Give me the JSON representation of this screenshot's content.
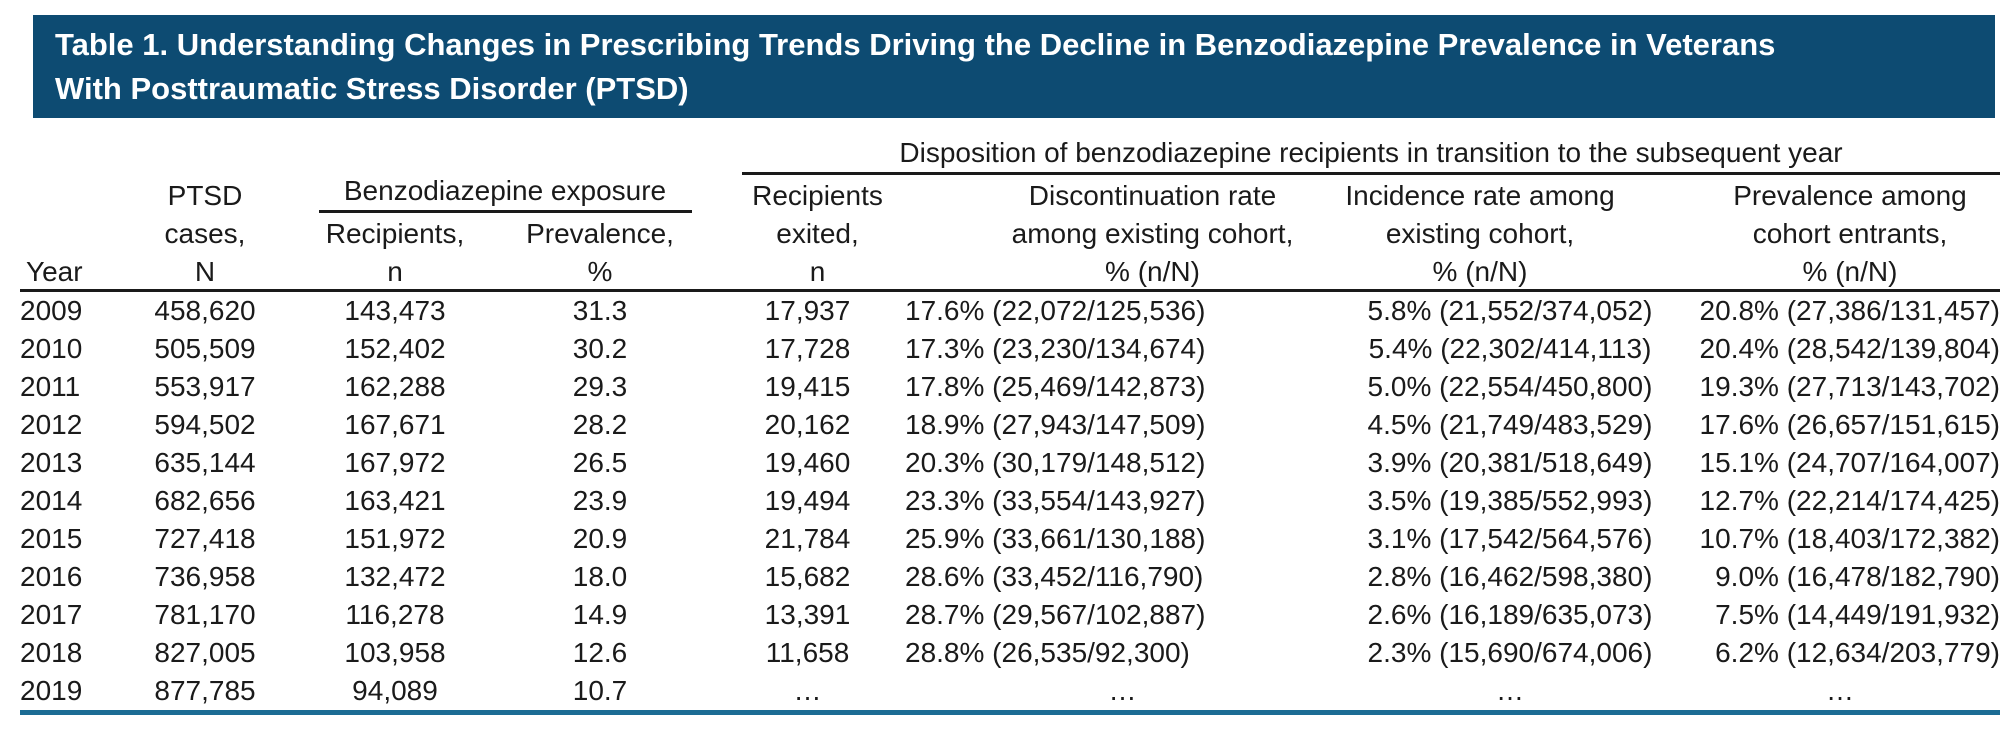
{
  "title": {
    "line1": "Table 1. Understanding Changes in Prescribing Trends Driving the Decline in Benzodiazepine Prevalence in Veterans",
    "line2": "With Posttraumatic Stress Disorder (PTSD)"
  },
  "colors": {
    "title_bar_bg": "#0d4b72",
    "title_text": "#ffffff",
    "body_text": "#1a1a1a",
    "rule": "#1a1a1a",
    "bottom_rule": "#1c6c94"
  },
  "table": {
    "groups": {
      "benzo": "Benzodiazepine exposure",
      "disposition": "Disposition of benzodiazepine recipients in transition to the subsequent year"
    },
    "columns": [
      {
        "label": "Year"
      },
      {
        "label": "PTSD\ncases,\nN"
      },
      {
        "label": "Recipients,\nn"
      },
      {
        "label": "Prevalence,\n%"
      },
      {
        "label": "Recipients\nexited,\nn"
      },
      {
        "label": "Discontinuation rate\namong existing cohort,\n% (n/N)"
      },
      {
        "label": "Incidence rate among\nexisting cohort,\n% (n/N)"
      },
      {
        "label": "Prevalence among\ncohort entrants,\n% (n/N)"
      }
    ],
    "rows": [
      [
        "2009",
        "458,620",
        "143,473",
        "31.3",
        "17,937",
        "17.6% (22,072/125,536)",
        "5.8% (21,552/374,052)",
        "20.8% (27,386/131,457)"
      ],
      [
        "2010",
        "505,509",
        "152,402",
        "30.2",
        "17,728",
        "17.3% (23,230/134,674)",
        "5.4% (22,302/414,113)",
        "20.4% (28,542/139,804)"
      ],
      [
        "2011",
        "553,917",
        "162,288",
        "29.3",
        "19,415",
        "17.8% (25,469/142,873)",
        "5.0% (22,554/450,800)",
        "19.3% (27,713/143,702)"
      ],
      [
        "2012",
        "594,502",
        "167,671",
        "28.2",
        "20,162",
        "18.9% (27,943/147,509)",
        "4.5% (21,749/483,529)",
        "17.6% (26,657/151,615)"
      ],
      [
        "2013",
        "635,144",
        "167,972",
        "26.5",
        "19,460",
        "20.3% (30,179/148,512)",
        "3.9% (20,381/518,649)",
        "15.1% (24,707/164,007)"
      ],
      [
        "2014",
        "682,656",
        "163,421",
        "23.9",
        "19,494",
        "23.3% (33,554/143,927)",
        "3.5% (19,385/552,993)",
        "12.7% (22,214/174,425)"
      ],
      [
        "2015",
        "727,418",
        "151,972",
        "20.9",
        "21,784",
        "25.9% (33,661/130,188)",
        "3.1% (17,542/564,576)",
        "10.7% (18,403/172,382)"
      ],
      [
        "2016",
        "736,958",
        "132,472",
        "18.0",
        "15,682",
        "28.6% (33,452/116,790)",
        "2.8% (16,462/598,380)",
        "9.0% (16,478/182,790)"
      ],
      [
        "2017",
        "781,170",
        "116,278",
        "14.9",
        "13,391",
        "28.7% (29,567/102,887)",
        "2.6% (16,189/635,073)",
        "7.5% (14,449/191,932)"
      ],
      [
        "2018",
        "827,005",
        "103,958",
        "12.6",
        "11,658",
        "28.8% (26,535/92,300)",
        "2.3% (15,690/674,006)",
        "6.2% (12,634/203,779)"
      ],
      [
        "2019",
        "877,785",
        "94,089",
        "10.7",
        "…",
        "…",
        "…",
        "…"
      ]
    ]
  }
}
